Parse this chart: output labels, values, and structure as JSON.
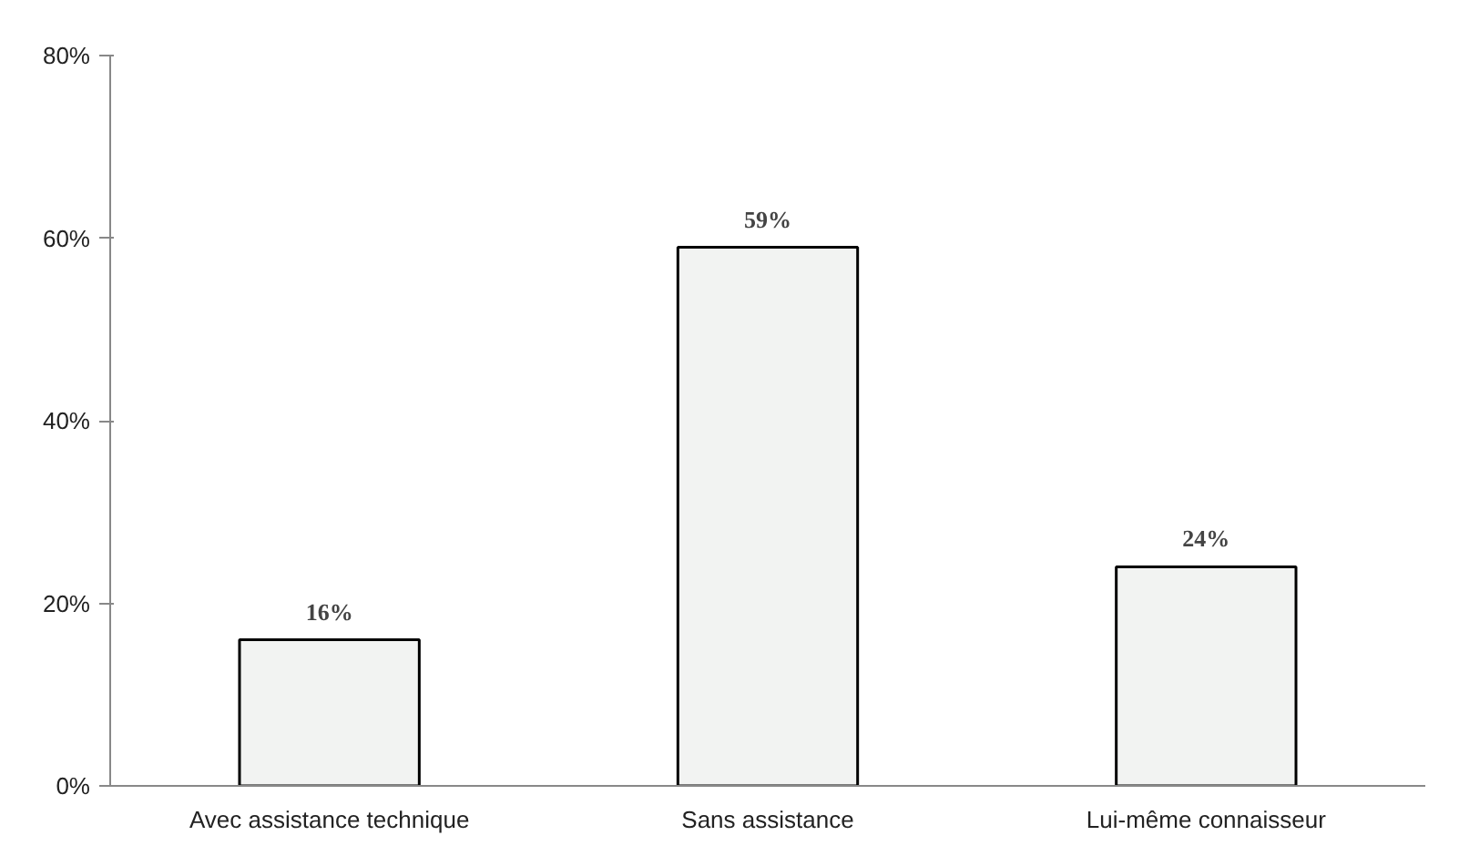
{
  "chart_data": {
    "type": "bar",
    "categories": [
      "Avec assistance technique",
      "Sans assistance",
      "Lui-même connaisseur"
    ],
    "values": [
      16,
      59,
      24
    ],
    "value_labels": [
      "16%",
      "59%",
      "24%"
    ],
    "color": "#f2f3f2",
    "ylim": [
      0,
      80
    ],
    "yticks": [
      {
        "value": 0,
        "label": "0%"
      },
      {
        "value": 20,
        "label": "20%"
      },
      {
        "value": 40,
        "label": "40%"
      },
      {
        "value": 60,
        "label": "60%"
      },
      {
        "value": 80,
        "label": "80%"
      }
    ],
    "grid": false
  }
}
